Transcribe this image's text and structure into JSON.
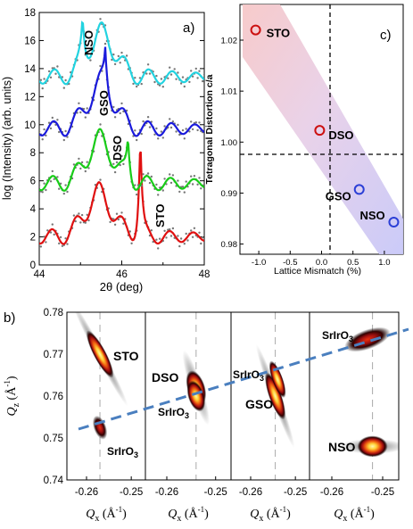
{
  "panel_a": {
    "label": "a)",
    "ylabel": "log (Intensity) (arb. units)",
    "xlabel": "2θ (deg)",
    "xticks": [
      "44",
      "46",
      "48"
    ],
    "yticks": [
      "0",
      "2",
      "4",
      "6",
      "8",
      "10",
      "12",
      "14",
      "16",
      "18"
    ],
    "curve_labels": [
      "NSO",
      "GSO",
      "DSO",
      "STO"
    ]
  },
  "panel_c": {
    "label": "c)",
    "ylabel": "Tetragonal Distortion c/a",
    "xlabel": "Lattice Mismatch (%)",
    "xticks": [
      "-1.0",
      "-0.5",
      "0.0",
      "0.5",
      "1.0"
    ],
    "yticks": [
      "0.98",
      "0.99",
      "1.00",
      "1.01",
      "1.02"
    ],
    "point_labels": [
      "STO",
      "DSO",
      "GSO",
      "NSO"
    ]
  },
  "panel_b": {
    "label": "b)",
    "ylabel_main": "Q",
    "ylabel_sub": "z",
    "ylabel_unit": " (Å",
    "ylabel_exp": "-1",
    "ylabel_close": ")",
    "yticks": [
      "0.74",
      "0.75",
      "0.76",
      "0.77",
      "0.78"
    ],
    "xticks": [
      "-0.26",
      "-0.25"
    ],
    "xlabel_main": "Q",
    "xlabel_sub": "x",
    "xlabel_unit": " (Å",
    "xlabel_exp": "-1",
    "xlabel_close": ")",
    "subpanels": [
      {
        "substrate": "STO",
        "film": "SrIrO",
        "film_sub": "3"
      },
      {
        "substrate": "DSO",
        "film": "SrIrO",
        "film_sub": "3"
      },
      {
        "substrate": "GSO",
        "film": "SrIrO",
        "film_sub": "3"
      },
      {
        "substrate": "NSO",
        "film": "SrIrO",
        "film_sub": "3"
      }
    ]
  },
  "colors": {
    "nso": "#22d3e0",
    "gso": "#1a1adc",
    "dso": "#18cc18",
    "sto": "#e01010",
    "marker": "#cc1111",
    "dashed_fit": "#4a7fbf"
  },
  "chart_data": [
    {
      "type": "line",
      "panel": "a",
      "title": "",
      "xlabel": "2θ (deg)",
      "ylabel": "log (Intensity) (arb. units)",
      "xlim": [
        44,
        48
      ],
      "ylim": [
        0,
        18
      ],
      "series": [
        {
          "name": "STO",
          "substrate_peak_2theta": 46.45,
          "baseline": 1.0,
          "peak": 10.5
        },
        {
          "name": "DSO",
          "substrate_peak_2theta": 46.15,
          "baseline": 4.8,
          "peak": 9.8
        },
        {
          "name": "GSO",
          "substrate_peak_2theta": 45.6,
          "baseline": 8.7,
          "peak": 13.6
        },
        {
          "name": "NSO",
          "substrate_peak_2theta": 45.05,
          "baseline": 12.4,
          "peak": 17.6
        }
      ]
    },
    {
      "type": "scatter",
      "panel": "c",
      "title": "",
      "xlabel": "Lattice Mismatch (%)",
      "ylabel": "Tetragonal Distortion c/a",
      "xlim": [
        -1.3,
        1.3
      ],
      "ylim": [
        0.978,
        1.027
      ],
      "x": [
        -1.05,
        -0.03,
        0.6,
        1.15
      ],
      "y": [
        1.022,
        1.0023,
        0.9907,
        0.9843
      ],
      "labels": [
        "STO",
        "DSO",
        "GSO",
        "NSO"
      ]
    },
    {
      "type": "heatmap",
      "panel": "b",
      "title": "",
      "xlabel": "Qx (Å-1)",
      "ylabel": "Qz (Å-1)",
      "ylim": [
        0.74,
        0.78
      ],
      "subpanels": [
        {
          "substrate": "STO",
          "film_peak": [
            -0.257,
            0.7525
          ],
          "substrate_peak": [
            -0.257,
            0.77
          ]
        },
        {
          "substrate": "DSO",
          "film_peak": [
            -0.254,
            0.76
          ],
          "substrate_peak": [
            -0.254,
            0.762
          ]
        },
        {
          "substrate": "GSO",
          "film_peak": [
            -0.254,
            0.764
          ],
          "substrate_peak": [
            -0.2545,
            0.76
          ]
        },
        {
          "substrate": "NSO",
          "film_peak": [
            -0.253,
            0.7735
          ],
          "substrate_peak": [
            -0.252,
            0.748
          ]
        }
      ]
    }
  ]
}
